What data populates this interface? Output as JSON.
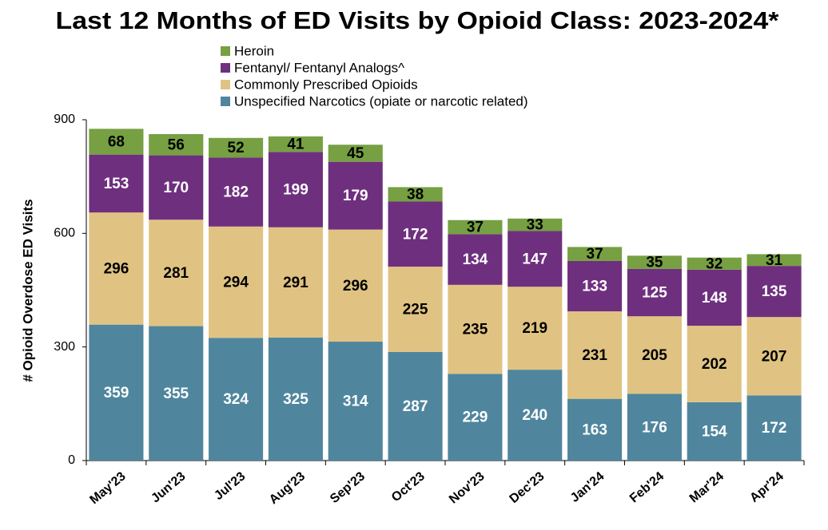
{
  "chart_data": {
    "type": "stacked_bar",
    "title": "Last 12 Months of ED Visits by Opioid Class: 2023-2024*",
    "y_label": "# Opioid Overdose ED Visits",
    "categories": [
      "May'23",
      "Jun'23",
      "Jul'23",
      "Aug'23",
      "Sep'23",
      "Oct'23",
      "Nov'23",
      "Dec'23",
      "Jan'24",
      "Feb'24",
      "Mar'24",
      "Apr'24"
    ],
    "series": [
      {
        "name": "Unspecified Narcotics (opiate or narcotic related)",
        "color": "#4f869e",
        "label_color": "#ffffff",
        "values": [
          359,
          355,
          324,
          325,
          314,
          287,
          229,
          240,
          163,
          176,
          154,
          172
        ]
      },
      {
        "name": "Commonly Prescribed Opioids",
        "color": "#e0c382",
        "label_color": "#000000",
        "values": [
          296,
          281,
          294,
          291,
          296,
          225,
          235,
          219,
          231,
          205,
          202,
          207
        ]
      },
      {
        "name": "Fentanyl/ Fentanyl Analogs^",
        "color": "#6f2f7f",
        "label_color": "#ffffff",
        "values": [
          153,
          170,
          182,
          199,
          179,
          172,
          134,
          147,
          133,
          125,
          148,
          135
        ]
      },
      {
        "name": "Heroin",
        "color": "#76a042",
        "label_color": "#000000",
        "values": [
          68,
          56,
          52,
          41,
          45,
          38,
          37,
          33,
          37,
          35,
          32,
          31
        ]
      }
    ],
    "ylim": [
      0,
      900
    ],
    "yticks": [
      0,
      300,
      600,
      900
    ],
    "grid": false,
    "legend": "top"
  }
}
